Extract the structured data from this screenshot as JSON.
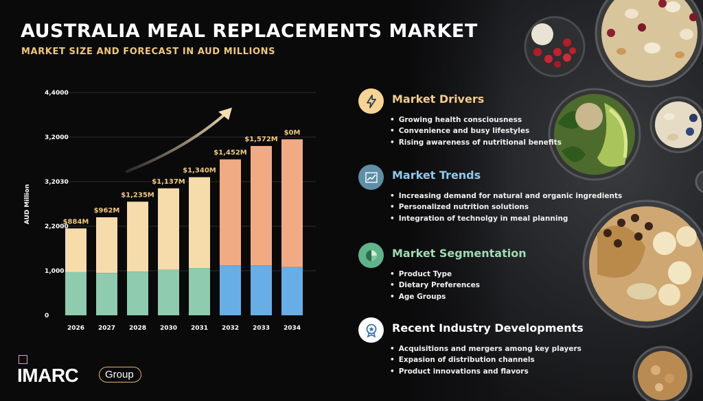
{
  "header": {
    "title": "AUSTRALIA MEAL REPLACEMENTS MARKET",
    "subtitle": "MARKET SIZE AND FORECAST IN AUD MILLIONS"
  },
  "chart_data": {
    "type": "bar",
    "stacked": true,
    "ylabel": "AUD  Million",
    "y_tick_labels": [
      "0",
      "1,000",
      "2,2000",
      "3,2030",
      "3,2000",
      "4,4000"
    ],
    "ylim": [
      0,
      5
    ],
    "categories": [
      "2026",
      "2027",
      "2028",
      "2030",
      "2031",
      "2032",
      "2033",
      "2034"
    ],
    "totals": [
      1.95,
      2.2,
      2.55,
      2.85,
      3.1,
      3.5,
      3.8,
      3.95
    ],
    "bottom": [
      0.97,
      0.95,
      0.98,
      1.02,
      1.06,
      1.12,
      1.12,
      1.08
    ],
    "data_labels": [
      "$884M",
      "$962M",
      "$1,235M",
      "$1,137M",
      "$1,340M",
      "$1,452M",
      "$1,572M",
      "$0M"
    ],
    "forecast_start_index": 5,
    "colors": {
      "hist_top": "#f6dcab",
      "hist_bottom": "#8ecbaf",
      "forecast_top": "#f0ab83",
      "forecast_bottom": "#68aee6",
      "label": "#f2c97a"
    }
  },
  "sections": [
    {
      "title": "Market Drivers",
      "icon": "lightning-icon",
      "color": "#f3cc8a",
      "items": [
        "Growing health consciousness",
        "Convenience and busy lifestyles",
        "Rising awareness of nutritional benefits"
      ]
    },
    {
      "title": "Market Trends",
      "icon": "trend-chart-icon",
      "color": "#8ec9ec",
      "items": [
        "Increasing demand for natural and organic ingredients",
        "Personalized nutrition solutions",
        "Integration of technolgy in meal planning"
      ]
    },
    {
      "title": "Market Segmentation",
      "icon": "pie-chart-icon",
      "color": "#9fdcb1",
      "items": [
        "Product Type",
        "Dietary Preferences",
        "Age Groups"
      ]
    },
    {
      "title": "Recent Industry Developments",
      "icon": "award-badge-icon",
      "color": "#ffffff",
      "items": [
        "Acquisitions and mergers among key players",
        "Expasion of distribution channels",
        "Product innovations and flavors"
      ]
    }
  ],
  "logo": {
    "main": "IMARC",
    "group": "Group"
  }
}
